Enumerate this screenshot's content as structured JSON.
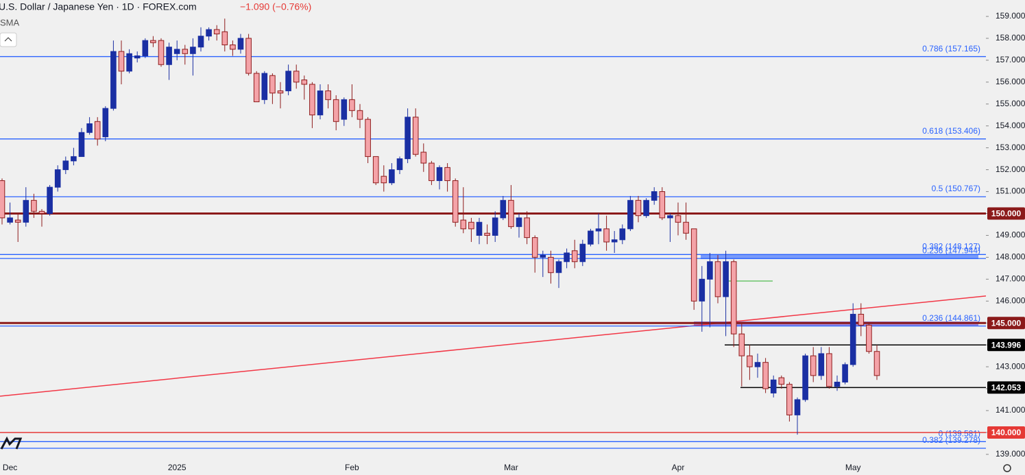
{
  "chart_data": {
    "type": "candlestick",
    "title": "U.S. Dollar / Japanese Yen · 1D · FOREX.com",
    "change": "−1.090 (−0.76%)",
    "indicator": "SMA",
    "categories": [
      null,
      "Dec",
      null,
      null,
      null,
      null,
      null,
      null,
      null,
      null,
      null,
      null,
      null,
      null,
      null,
      null,
      null,
      null,
      null,
      null,
      null,
      null,
      "2025",
      null,
      null,
      null,
      null,
      null,
      null,
      null,
      null,
      null,
      null,
      null,
      null,
      null,
      null,
      null,
      null,
      null,
      null,
      null,
      null,
      null,
      "Feb",
      null,
      null,
      null,
      null,
      null,
      null,
      null,
      null,
      null,
      null,
      null,
      null,
      null,
      null,
      null,
      null,
      null,
      null,
      null,
      "Mar",
      null,
      null,
      null,
      null,
      null,
      null,
      null,
      null,
      null,
      null,
      null,
      null,
      null,
      null,
      null,
      null,
      null,
      null,
      null,
      null,
      "Apr",
      null,
      null,
      null,
      null,
      null,
      null,
      null,
      null,
      null,
      null,
      null,
      null,
      null,
      null,
      null,
      null,
      null,
      null,
      null,
      null,
      null,
      "May",
      null,
      null,
      null
    ],
    "open": [
      151.5,
      149.6,
      149.7,
      149.6,
      150.6,
      150.1,
      150.0,
      151.2,
      152.0,
      152.4,
      152.6,
      153.7,
      154.2,
      153.5,
      154.8,
      157.4,
      156.5,
      157.1,
      157.2,
      157.9,
      157.9,
      156.8,
      157.3,
      157.5,
      157.3,
      157.6,
      158.1,
      158.4,
      158.3,
      157.7,
      157.5,
      158.0,
      156.4,
      155.2,
      156.3,
      155.6,
      155.6,
      156.5,
      156.1,
      155.9,
      154.5,
      155.6,
      155.2,
      154.3,
      155.2,
      154.7,
      154.3,
      152.6,
      151.7,
      151.4,
      152.0,
      152.5,
      154.4,
      152.8,
      152.3,
      151.5,
      152.1,
      151.5,
      149.7,
      149.6,
      149.0,
      149.1,
      149.0,
      149.8,
      150.6,
      149.4,
      149.8,
      148.9,
      148.0,
      148.0,
      147.3,
      147.8,
      148.3,
      147.8,
      148.6,
      149.2,
      149.3,
      148.7,
      148.8,
      149.3,
      150.6,
      149.9,
      150.6,
      151.0,
      149.8,
      149.9,
      149.6,
      149.3,
      146.0,
      147.0,
      147.8,
      146.2,
      147.8,
      144.5,
      143.5,
      143.0,
      143.2,
      141.8,
      142.5,
      142.2,
      140.8,
      141.5,
      143.5,
      142.6,
      143.6,
      142.1,
      142.3,
      143.1,
      145.4,
      144.9,
      143.7
    ],
    "high": [
      151.6,
      150.5,
      150.0,
      151.2,
      150.9,
      150.2,
      151.3,
      152.2,
      152.6,
      153.0,
      153.9,
      154.4,
      154.4,
      154.9,
      157.9,
      157.9,
      157.5,
      157.4,
      158.0,
      158.1,
      158.0,
      157.8,
      157.9,
      157.7,
      158.0,
      158.5,
      158.5,
      158.6,
      158.9,
      157.9,
      158.2,
      158.2,
      156.5,
      156.5,
      156.4,
      156.0,
      156.8,
      156.8,
      156.3,
      156.0,
      155.9,
      155.9,
      155.4,
      155.3,
      155.9,
      155.0,
      154.4,
      152.6,
      152.2,
      152.3,
      152.6,
      154.8,
      154.8,
      153.2,
      152.4,
      152.2,
      152.3,
      151.6,
      151.2,
      149.8,
      149.8,
      149.5,
      150.1,
      150.8,
      151.3,
      150.0,
      150.1,
      149.0,
      148.3,
      148.3,
      147.9,
      148.4,
      148.8,
      148.8,
      149.3,
      150.0,
      149.9,
      149.2,
      149.5,
      150.8,
      150.8,
      150.7,
      151.2,
      151.2,
      150.0,
      150.5,
      150.5,
      149.3,
      147.6,
      148.2,
      148.1,
      148.3,
      147.9,
      145.0,
      144.0,
      143.6,
      143.4,
      142.6,
      142.6,
      142.3,
      141.6,
      143.6,
      143.9,
      143.9,
      143.9,
      142.6,
      143.2,
      145.9,
      145.9,
      145.0,
      144.0
    ],
    "low": [
      149.5,
      149.5,
      148.7,
      149.4,
      149.8,
      149.4,
      149.9,
      151.0,
      151.8,
      152.2,
      152.6,
      153.6,
      153.1,
      153.3,
      154.7,
      155.9,
      156.4,
      156.9,
      157.1,
      157.6,
      156.7,
      156.1,
      157.0,
      156.8,
      156.3,
      157.4,
      157.9,
      157.9,
      157.4,
      157.2,
      157.3,
      156.3,
      155.1,
      155.0,
      155.0,
      154.8,
      155.4,
      155.7,
      155.2,
      153.9,
      154.3,
      154.8,
      153.8,
      154.0,
      154.4,
      153.9,
      152.3,
      151.3,
      151.0,
      151.3,
      151.8,
      152.3,
      152.6,
      151.9,
      151.3,
      151.1,
      151.0,
      149.4,
      149.1,
      148.7,
      148.6,
      148.6,
      148.7,
      149.7,
      149.3,
      148.9,
      148.6,
      147.3,
      147.1,
      146.8,
      146.6,
      147.5,
      147.5,
      147.6,
      148.5,
      148.6,
      148.3,
      148.2,
      148.6,
      149.2,
      149.6,
      149.8,
      150.4,
      149.7,
      148.7,
      149.0,
      148.8,
      145.6,
      144.6,
      144.8,
      145.9,
      144.4,
      143.9,
      142.1,
      142.4,
      142.5,
      141.8,
      141.6,
      142.0,
      140.5,
      139.9,
      141.4,
      142.3,
      142.4,
      142.0,
      141.9,
      142.2,
      143.0,
      144.4,
      143.6,
      142.4
    ],
    "close": [
      149.8,
      149.8,
      149.6,
      150.6,
      150.1,
      150.0,
      151.2,
      152.0,
      152.4,
      152.6,
      153.7,
      154.1,
      153.4,
      154.8,
      157.4,
      156.5,
      157.3,
      157.2,
      157.9,
      157.8,
      156.8,
      157.6,
      157.5,
      157.3,
      157.6,
      158.1,
      158.4,
      158.2,
      157.7,
      157.5,
      158.0,
      156.4,
      155.1,
      156.4,
      155.5,
      155.5,
      156.5,
      156.0,
      155.9,
      154.5,
      155.6,
      155.2,
      154.2,
      155.2,
      154.7,
      154.3,
      152.6,
      151.4,
      151.4,
      152.0,
      152.5,
      154.4,
      152.7,
      152.3,
      151.5,
      152.1,
      151.5,
      149.6,
      149.3,
      149.3,
      149.6,
      149.0,
      149.8,
      150.6,
      149.4,
      149.8,
      148.9,
      148.0,
      148.1,
      147.3,
      147.8,
      148.2,
      147.8,
      148.6,
      149.2,
      149.3,
      148.7,
      148.8,
      149.3,
      150.6,
      149.9,
      150.6,
      151.0,
      149.8,
      149.9,
      149.6,
      149.1,
      146.0,
      147.0,
      147.8,
      146.2,
      147.8,
      144.5,
      143.5,
      143.0,
      143.2,
      142.0,
      142.4,
      142.2,
      140.8,
      141.5,
      143.5,
      142.6,
      143.6,
      142.1,
      142.3,
      143.1,
      145.4,
      144.9,
      143.7,
      142.6
    ],
    "up_color": "#1a2fa3",
    "down_color": "#f4a3a8",
    "down_edge": "#8e1b1b",
    "ylim": [
      138.84,
      159.75
    ],
    "yticks": [
      {
        "value": 139,
        "label": "139.000"
      },
      {
        "value": 140,
        "label": "140.000"
      },
      {
        "value": 141,
        "label": "141.000"
      },
      {
        "value": 142,
        "label": "142.000"
      },
      {
        "value": 143,
        "label": "143.000"
      },
      {
        "value": 144,
        "label": "144.000"
      },
      {
        "value": 145,
        "label": "145.000"
      },
      {
        "value": 146,
        "label": "146.000"
      },
      {
        "value": 147,
        "label": "147.000"
      },
      {
        "value": 148,
        "label": "148.000"
      },
      {
        "value": 149,
        "label": "149.000"
      },
      {
        "value": 150,
        "label": "150.000"
      },
      {
        "value": 151,
        "label": "151.000"
      },
      {
        "value": 152,
        "label": "152.000"
      },
      {
        "value": 153,
        "label": "153.000"
      },
      {
        "value": 154,
        "label": "154.000"
      },
      {
        "value": 155,
        "label": "155.000"
      },
      {
        "value": 156,
        "label": "156.000"
      },
      {
        "value": 157,
        "label": "157.000"
      },
      {
        "value": 158,
        "label": "158.000"
      },
      {
        "value": 159,
        "label": "159.000"
      }
    ],
    "fib_color": "#2962ff",
    "fib_levels": [
      {
        "value": 157.165,
        "label": "0.786 (157.165)"
      },
      {
        "value": 153.406,
        "label": "0.618 (153.406)"
      },
      {
        "value": 150.767,
        "label": "0.5 (150.767)"
      },
      {
        "value": 148.127,
        "label": "0.382 (148.127)"
      },
      {
        "value": 147.944,
        "label": "0.236 (147.944)"
      },
      {
        "value": 144.861,
        "label": "0.236 (144.861)"
      },
      {
        "value": 139.581,
        "label": "0 (139.581)"
      },
      {
        "value": 139.278,
        "label": "0.382 (139.278)"
      }
    ],
    "price_lines": [
      {
        "value": 150,
        "label": "150.000",
        "color": "#8b1a1a"
      },
      {
        "value": 145,
        "label": "145.000",
        "color": "#8b1a1a"
      },
      {
        "value": 143.996,
        "label": "143.996",
        "color": "#000000"
      },
      {
        "value": 142.053,
        "label": "142.053",
        "color": "#000000"
      },
      {
        "value": 140,
        "label": "140.000",
        "color": "#e53935"
      }
    ]
  }
}
